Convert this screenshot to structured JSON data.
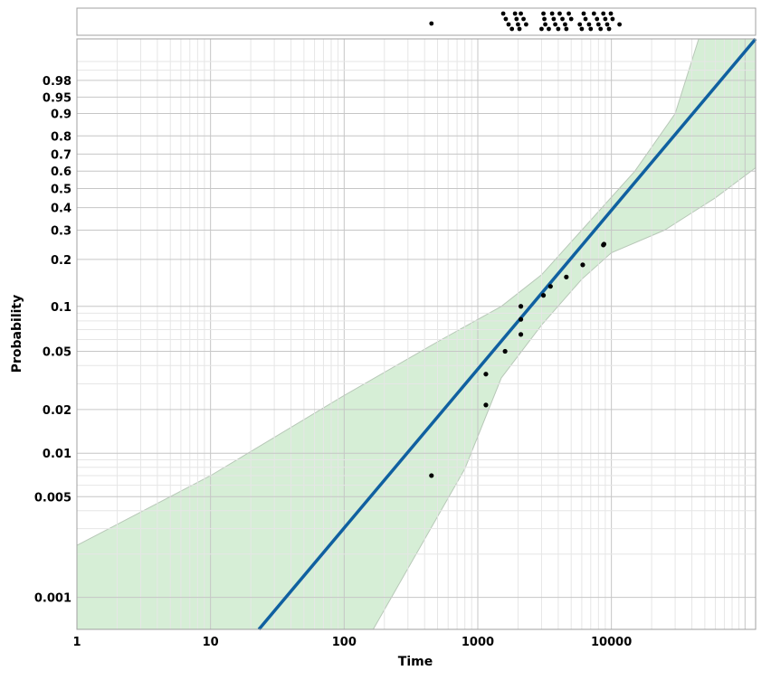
{
  "chart_data": {
    "type": "scatter",
    "xlabel": "Time",
    "ylabel": "Probability",
    "x_scale": "log",
    "y_scale": "weibull-probability",
    "xlim": [
      1,
      120000
    ],
    "ylim": [
      0.0006,
      0.9995
    ],
    "x_tick_labels": [
      "1",
      "10",
      "100",
      "1000",
      "10000"
    ],
    "y_tick_labels": [
      "0.001",
      "0.005",
      "0.01",
      "0.02",
      "0.05",
      "0.1",
      "0.2",
      "0.3",
      "0.4",
      "0.5",
      "0.6",
      "0.7",
      "0.8",
      "0.9",
      "0.95",
      "0.98"
    ],
    "grid": true,
    "fit_line": {
      "color": "#1060a0",
      "points": [
        {
          "x": 23,
          "p": 0.0006
        },
        {
          "x": 120000,
          "p": 0.9995
        }
      ]
    },
    "confidence_band": {
      "color": "#d6eed6",
      "lower": [
        {
          "x": 1,
          "p": 0.0006
        },
        {
          "x": 165,
          "p": 0.0006
        },
        {
          "x": 800,
          "p": 0.0078
        },
        {
          "x": 1500,
          "p": 0.033
        },
        {
          "x": 3000,
          "p": 0.075
        },
        {
          "x": 6000,
          "p": 0.15
        },
        {
          "x": 10000,
          "p": 0.22
        },
        {
          "x": 25000,
          "p": 0.3
        },
        {
          "x": 60000,
          "p": 0.45
        },
        {
          "x": 120000,
          "p": 0.62
        }
      ],
      "upper": [
        {
          "x": 1,
          "p": 0.0023
        },
        {
          "x": 10,
          "p": 0.007
        },
        {
          "x": 100,
          "p": 0.025
        },
        {
          "x": 500,
          "p": 0.058
        },
        {
          "x": 1500,
          "p": 0.1
        },
        {
          "x": 3000,
          "p": 0.16
        },
        {
          "x": 6000,
          "p": 0.3
        },
        {
          "x": 15000,
          "p": 0.6
        },
        {
          "x": 30000,
          "p": 0.9
        },
        {
          "x": 45000,
          "p": 0.9995
        },
        {
          "x": 120000,
          "p": 0.9995
        }
      ]
    },
    "points": [
      {
        "x": 450,
        "p": 0.007
      },
      {
        "x": 1150,
        "p": 0.0215
      },
      {
        "x": 1150,
        "p": 0.035
      },
      {
        "x": 1600,
        "p": 0.05
      },
      {
        "x": 2100,
        "p": 0.065
      },
      {
        "x": 2100,
        "p": 0.082
      },
      {
        "x": 2100,
        "p": 0.1
      },
      {
        "x": 3100,
        "p": 0.118
      },
      {
        "x": 3500,
        "p": 0.135
      },
      {
        "x": 4600,
        "p": 0.155
      },
      {
        "x": 6100,
        "p": 0.185
      },
      {
        "x": 8700,
        "p": 0.245
      },
      {
        "x": 8800,
        "p": 0.248
      }
    ],
    "rug_points": {
      "failures": [
        450
      ],
      "times": [
        1550,
        1620,
        1700,
        1800,
        1900,
        1950,
        2000,
        2050,
        2100,
        2200,
        2300,
        3000,
        3100,
        3150,
        3200,
        3400,
        3600,
        3700,
        3800,
        4000,
        4100,
        4300,
        4500,
        4600,
        4800,
        5000,
        5800,
        6000,
        6200,
        6400,
        6800,
        7000,
        7400,
        7800,
        8000,
        8300,
        8700,
        9000,
        9300,
        9600,
        9900,
        10200,
        11500
      ]
    }
  }
}
